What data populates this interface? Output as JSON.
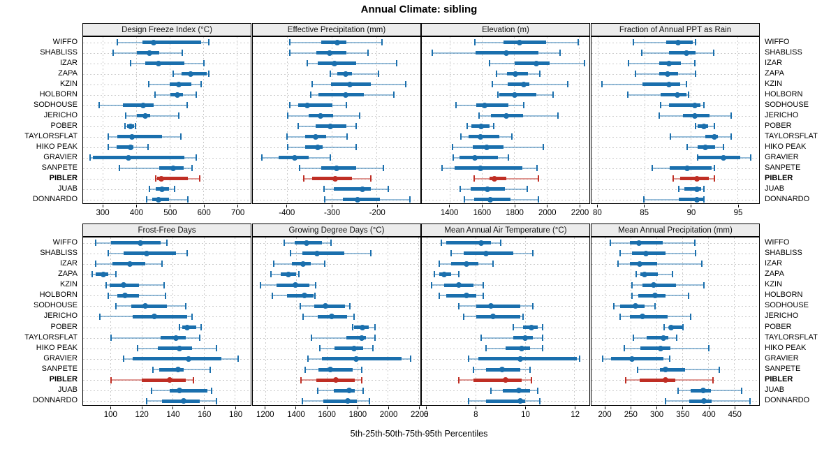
{
  "title": "Annual Climate: sibling",
  "footer": "5th-25th-50th-75th-95th Percentiles",
  "highlight_site": "PIBLER",
  "colors": {
    "series_blue": "#1a6fad",
    "series_blue_light": "rgba(26,111,173,0.45)",
    "highlight_red": "#bf2e24",
    "highlight_red_light": "rgba(191,46,36,0.5)",
    "strip_bg": "#ececec",
    "grid": "#c9c9c9"
  },
  "chart_data": {
    "type": "scatter",
    "variant": "percentile_interval_dotplot",
    "percentiles": [
      5,
      25,
      50,
      75,
      95
    ],
    "legend": "none",
    "grid": "dotted both axes",
    "categories": [
      "WIFFO",
      "SHABLISS",
      "IZAR",
      "ZAPA",
      "KZIN",
      "HOLBORN",
      "SODHOUSE",
      "JERICHO",
      "POBER",
      "TAYLORSFLAT",
      "HIKO PEAK",
      "GRAVIER",
      "SANPETE",
      "PIBLER",
      "JUAB",
      "DONNARDO"
    ],
    "highlighted_category": "PIBLER",
    "panels": [
      {
        "title": "Design Freeze Index (°C)",
        "grid_row": 0,
        "grid_col": 0,
        "axis_ticks": [
          300,
          400,
          500,
          600,
          700
        ],
        "axis_range": [
          240,
          740
        ],
        "values": [
          [
            343,
            418,
            451,
            593,
            615
          ],
          [
            330,
            400,
            437,
            468,
            535
          ],
          [
            382,
            426,
            465,
            543,
            600
          ],
          [
            508,
            534,
            561,
            608,
            616
          ],
          [
            436,
            498,
            526,
            562,
            592
          ],
          [
            454,
            500,
            522,
            537,
            577
          ],
          [
            287,
            359,
            419,
            451,
            550
          ],
          [
            368,
            401,
            426,
            440,
            525
          ],
          [
            364,
            372,
            382,
            392,
            396
          ],
          [
            314,
            343,
            386,
            475,
            532
          ],
          [
            314,
            339,
            381,
            389,
            434
          ],
          [
            261,
            270,
            375,
            543,
            578
          ],
          [
            349,
            468,
            509,
            541,
            565
          ],
          [
            457,
            461,
            473,
            553,
            587
          ],
          [
            437,
            456,
            476,
            497,
            512
          ],
          [
            429,
            446,
            464,
            497,
            553
          ]
        ]
      },
      {
        "title": "Effective Precipitation (mm)",
        "grid_row": 0,
        "grid_col": 1,
        "axis_ticks": [
          -400,
          -300,
          -200
        ],
        "axis_range": [
          -477,
          -103
        ],
        "values": [
          [
            -394,
            -324,
            -288,
            -268,
            -188
          ],
          [
            -394,
            -335,
            -306,
            -268,
            -220
          ],
          [
            -356,
            -332,
            -295,
            -247,
            -156
          ],
          [
            -304,
            -288,
            -269,
            -256,
            -196
          ],
          [
            -344,
            -302,
            -261,
            -214,
            -135
          ],
          [
            -347,
            -330,
            -270,
            -229,
            -162
          ],
          [
            -395,
            -376,
            -356,
            -300,
            -268
          ],
          [
            -399,
            -352,
            -326,
            -297,
            -239
          ],
          [
            -375,
            -337,
            -304,
            -268,
            -247
          ],
          [
            -400,
            -360,
            -336,
            -313,
            -266
          ],
          [
            -399,
            -360,
            -332,
            -321,
            -247
          ],
          [
            -457,
            -420,
            -384,
            -353,
            -304
          ],
          [
            -372,
            -325,
            -290,
            -247,
            -185
          ],
          [
            -364,
            -345,
            -293,
            -256,
            -213
          ],
          [
            -318,
            -297,
            -233,
            -213,
            -175
          ],
          [
            -316,
            -276,
            -243,
            -194,
            -126
          ]
        ]
      },
      {
        "title": "Elevation (m)",
        "grid_row": 0,
        "grid_col": 2,
        "axis_ticks": [
          1400,
          1600,
          1800,
          2000,
          2200
        ],
        "axis_range": [
          1226,
          2262
        ],
        "values": [
          [
            1556,
            1733,
            1830,
            1993,
            2195
          ],
          [
            1290,
            1560,
            1748,
            1948,
            2081
          ],
          [
            1645,
            1800,
            1933,
            2015,
            2230
          ],
          [
            1689,
            1753,
            1805,
            1881,
            1956
          ],
          [
            1660,
            1755,
            1855,
            1890,
            2130
          ],
          [
            1695,
            1705,
            1800,
            1933,
            2037
          ],
          [
            1437,
            1563,
            1615,
            1763,
            1855
          ],
          [
            1578,
            1652,
            1748,
            1852,
            2067
          ],
          [
            1506,
            1534,
            1591,
            1646,
            1671
          ],
          [
            1467,
            1514,
            1589,
            1706,
            1781
          ],
          [
            1417,
            1543,
            1629,
            1731,
            1977
          ],
          [
            1420,
            1460,
            1553,
            1696,
            1760
          ],
          [
            1353,
            1431,
            1589,
            1849,
            1939
          ],
          [
            1550,
            1645,
            1675,
            1750,
            1945
          ],
          [
            1463,
            1529,
            1631,
            1739,
            1877
          ],
          [
            1491,
            1550,
            1649,
            1774,
            1946
          ]
        ]
      },
      {
        "title": "Fraction of Annual PPT as Rain",
        "grid_row": 0,
        "grid_col": 3,
        "axis_ticks": [
          80,
          85,
          90,
          95
        ],
        "axis_range": [
          79.3,
          97.3
        ],
        "values": [
          [
            83.8,
            87.3,
            88.6,
            90.2,
            90.5
          ],
          [
            84.7,
            87.6,
            89.5,
            90.5,
            92.4
          ],
          [
            83.3,
            86.6,
            87.6,
            88.9,
            90.4
          ],
          [
            84.0,
            86.6,
            87.5,
            88.6,
            90.5
          ],
          [
            80.4,
            84.8,
            87.6,
            88.8,
            89.5
          ],
          [
            83.2,
            86.7,
            88.5,
            89.5,
            89.7
          ],
          [
            86.7,
            87.6,
            90.4,
            91.0,
            91.4
          ],
          [
            86.6,
            89.1,
            90.4,
            92.0,
            94.3
          ],
          [
            90.5,
            90.7,
            91.4,
            91.8,
            92.5
          ],
          [
            87.8,
            91.5,
            92.5,
            92.9,
            94.3
          ],
          [
            89.6,
            90.7,
            91.5,
            92.6,
            93.5
          ],
          [
            90.7,
            90.8,
            93.5,
            95.3,
            96.4
          ],
          [
            85.8,
            87.7,
            89.6,
            92.2,
            92.5
          ],
          [
            88.1,
            88.8,
            90.6,
            91.9,
            92.5
          ],
          [
            88.7,
            89.3,
            90.6,
            91.1,
            91.4
          ],
          [
            84.9,
            88.7,
            90.6,
            91.3,
            91.4
          ]
        ]
      },
      {
        "title": "Frost-Free Days",
        "grid_row": 1,
        "grid_col": 0,
        "axis_ticks": [
          100,
          120,
          140,
          160,
          180
        ],
        "axis_range": [
          82,
          190
        ],
        "values": [
          [
            90,
            100,
            119,
            132,
            136
          ],
          [
            98,
            108,
            123,
            142,
            149
          ],
          [
            90,
            101,
            112,
            122,
            133
          ],
          [
            88,
            90,
            95,
            98,
            103
          ],
          [
            97,
            99,
            108,
            118,
            134
          ],
          [
            98,
            104,
            109,
            118,
            135
          ],
          [
            103,
            113,
            122,
            136,
            148
          ],
          [
            93,
            114,
            128,
            149,
            152
          ],
          [
            144,
            146,
            149,
            155,
            158
          ],
          [
            100,
            132,
            142,
            148,
            157
          ],
          [
            117,
            130,
            144,
            152,
            168
          ],
          [
            108,
            114,
            150,
            171,
            182
          ],
          [
            127,
            131,
            143,
            147,
            164
          ],
          [
            100,
            120,
            138,
            148,
            153
          ],
          [
            126,
            138,
            144,
            162,
            165
          ],
          [
            123,
            133,
            147,
            157,
            168
          ]
        ]
      },
      {
        "title": "Growing Degree Days (°C)",
        "grid_row": 1,
        "grid_col": 1,
        "axis_ticks": [
          1200,
          1400,
          1600,
          1800,
          2000,
          2200
        ],
        "axis_range": [
          1115,
          2210
        ],
        "values": [
          [
            1320,
            1387,
            1467,
            1565,
            1625
          ],
          [
            1363,
            1438,
            1537,
            1713,
            1887
          ],
          [
            1252,
            1371,
            1443,
            1494,
            1586
          ],
          [
            1232,
            1298,
            1348,
            1398,
            1417
          ],
          [
            1165,
            1268,
            1395,
            1486,
            1525
          ],
          [
            1244,
            1340,
            1454,
            1510,
            1522
          ],
          [
            1427,
            1517,
            1589,
            1716,
            1748
          ],
          [
            1443,
            1541,
            1629,
            1729,
            1776
          ],
          [
            1766,
            1778,
            1831,
            1872,
            1912
          ],
          [
            1497,
            1728,
            1826,
            1852,
            1912
          ],
          [
            1555,
            1648,
            1778,
            1834,
            1902
          ],
          [
            1476,
            1565,
            1789,
            2086,
            2146
          ],
          [
            1457,
            1543,
            1623,
            1766,
            1827
          ],
          [
            1431,
            1528,
            1657,
            1781,
            1829
          ],
          [
            1540,
            1645,
            1746,
            1781,
            1837
          ],
          [
            1437,
            1577,
            1736,
            1796,
            1875
          ]
        ]
      },
      {
        "title": "Mean Annual Air Temperature (°C)",
        "grid_row": 1,
        "grid_col": 2,
        "axis_ticks": [
          6,
          8,
          10,
          12
        ],
        "axis_range": [
          5.8,
          12.6
        ],
        "values": [
          [
            6.6,
            6.8,
            8.2,
            8.6,
            9.0
          ],
          [
            7.0,
            7.5,
            8.4,
            9.5,
            10.3
          ],
          [
            6.5,
            7.0,
            7.6,
            8.1,
            8.7
          ],
          [
            6.3,
            6.5,
            6.7,
            7.0,
            7.3
          ],
          [
            6.2,
            6.7,
            7.3,
            7.9,
            8.3
          ],
          [
            6.5,
            6.8,
            7.6,
            8.0,
            8.3
          ],
          [
            7.3,
            8.0,
            8.6,
            9.8,
            10.3
          ],
          [
            7.5,
            8.0,
            8.7,
            9.8,
            9.9
          ],
          [
            9.5,
            9.9,
            10.25,
            10.5,
            10.7
          ],
          [
            8.2,
            9.5,
            10.0,
            10.3,
            10.7
          ],
          [
            8.4,
            9.2,
            9.85,
            10.2,
            10.7
          ],
          [
            7.7,
            8.1,
            9.8,
            12.1,
            12.2
          ],
          [
            7.9,
            8.4,
            9.05,
            9.8,
            10.2
          ],
          [
            7.3,
            7.9,
            9.2,
            9.85,
            10.25
          ],
          [
            8.6,
            9.1,
            9.75,
            10.2,
            10.5
          ],
          [
            7.7,
            8.4,
            9.8,
            10.0,
            10.6
          ]
        ]
      },
      {
        "title": "Mean Annual Precipitation (mm)",
        "grid_row": 1,
        "grid_col": 3,
        "axis_ticks": [
          200,
          250,
          300,
          350,
          400,
          450
        ],
        "axis_range": [
          173,
          498
        ],
        "values": [
          [
            209,
            248,
            265,
            311,
            373
          ],
          [
            228,
            252,
            279,
            316,
            375
          ],
          [
            224,
            247,
            266,
            300,
            387
          ],
          [
            259,
            268,
            276,
            301,
            330
          ],
          [
            251,
            272,
            294,
            337,
            391
          ],
          [
            252,
            264,
            296,
            316,
            361
          ],
          [
            217,
            228,
            258,
            276,
            296
          ],
          [
            228,
            247,
            272,
            320,
            365
          ],
          [
            314,
            324,
            328,
            349,
            350
          ],
          [
            254,
            280,
            312,
            322,
            338
          ],
          [
            236,
            268,
            307,
            326,
            400
          ],
          [
            194,
            211,
            251,
            312,
            325
          ],
          [
            263,
            306,
            317,
            354,
            421
          ],
          [
            240,
            267,
            317,
            335,
            408
          ],
          [
            341,
            365,
            390,
            404,
            464
          ],
          [
            316,
            363,
            391,
            406,
            481
          ]
        ]
      }
    ]
  }
}
